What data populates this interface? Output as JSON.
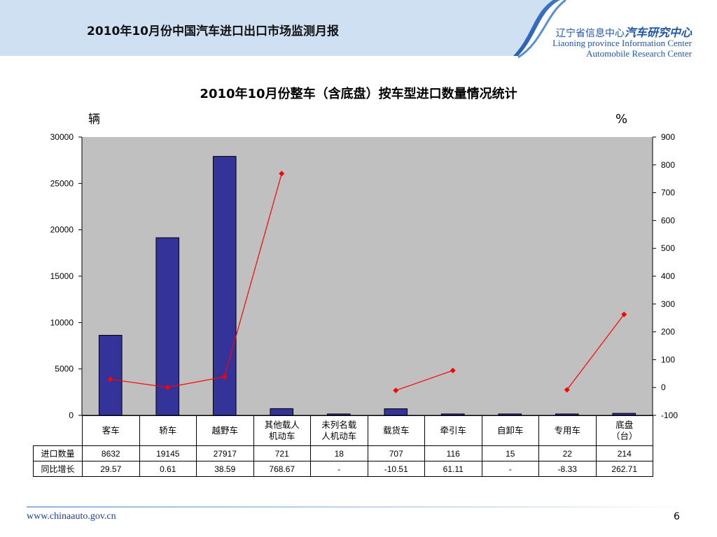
{
  "header": {
    "title": "2010年10月份中国汽车进口出口市场监测月报",
    "org_cn_prefix": "辽宁省信息中心",
    "org_cn_suffix": "汽车研究中心",
    "org_en_line1": "Liaoning province Information Center",
    "org_en_line2": "Automobile Research Center"
  },
  "colors": {
    "bar": "#333399",
    "line": "#ff0000",
    "plot_bg": "#c0c0c0",
    "header_band": "#1f56a8"
  },
  "chart_data": {
    "type": "bar",
    "title": "2010年10月份整车（含底盘）按车型进口数量情况统计",
    "ylabel_left": "辆",
    "ylabel_right": "%",
    "categories": [
      "客车",
      "轿车",
      "越野车",
      "其他载人机动车",
      "未列名载人机动车",
      "载货车",
      "牵引车",
      "自卸车",
      "专用车",
      "底盘（台）"
    ],
    "category_lines": [
      [
        "客车"
      ],
      [
        "轿车"
      ],
      [
        "越野车"
      ],
      [
        "其他载人",
        "机动车"
      ],
      [
        "未列名载",
        "人机动车"
      ],
      [
        "载货车"
      ],
      [
        "牵引车"
      ],
      [
        "自卸车"
      ],
      [
        "专用车"
      ],
      [
        "底盘",
        "（台）"
      ]
    ],
    "ylim_left": [
      0,
      30000
    ],
    "yticks_left": [
      0,
      5000,
      10000,
      15000,
      20000,
      25000,
      30000
    ],
    "ylim_right": [
      -100,
      900
    ],
    "yticks_right": [
      -100,
      0,
      100,
      200,
      300,
      400,
      500,
      600,
      700,
      800,
      900
    ],
    "grid": false,
    "series": [
      {
        "name": "进口数量",
        "type": "bar",
        "axis": "left",
        "values": [
          8632,
          19145,
          27917,
          721,
          18,
          707,
          116,
          15,
          22,
          214
        ],
        "labels": [
          "8632",
          "19145",
          "27917",
          "721",
          "18",
          "707",
          "116",
          "15",
          "22",
          "214"
        ]
      },
      {
        "name": "同比增长",
        "type": "line",
        "axis": "right",
        "values": [
          29.57,
          0.61,
          38.59,
          768.67,
          null,
          -10.51,
          61.11,
          null,
          -8.33,
          262.71
        ],
        "labels": [
          "29.57",
          "0.61",
          "38.59",
          "768.67",
          "-",
          "-10.51",
          "61.11",
          "-",
          "-8.33",
          "262.71"
        ]
      }
    ]
  },
  "footer": {
    "url": "www.chinaauto.gov.cn",
    "page_number": "6"
  }
}
